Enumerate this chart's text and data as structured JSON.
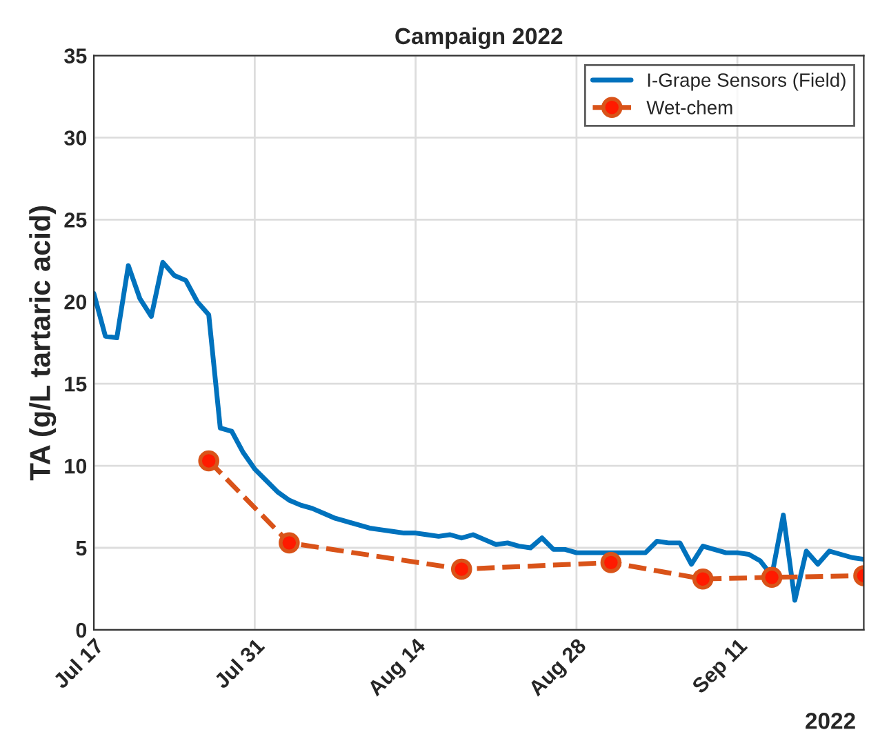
{
  "chart_data": {
    "type": "line",
    "title": "Campaign 2022",
    "ylabel": "TA (g/L tartaric acid)",
    "annotations": [
      "2022"
    ],
    "xlim": [
      "2022-07-17",
      "2022-09-22"
    ],
    "xticks": [
      {
        "value": "2022-07-17",
        "label": "Jul 17"
      },
      {
        "value": "2022-07-31",
        "label": "Jul 31"
      },
      {
        "value": "2022-08-14",
        "label": "Aug 14"
      },
      {
        "value": "2022-08-28",
        "label": "Aug 28"
      },
      {
        "value": "2022-09-11",
        "label": "Sep 11"
      }
    ],
    "ylim": [
      0,
      35
    ],
    "yticks": [
      0,
      5,
      10,
      15,
      20,
      25,
      30,
      35
    ],
    "grid": true,
    "legend": "top right",
    "series": [
      {
        "name": "I-Grape Sensors (Field)",
        "color": "#0072bd",
        "marker": "none",
        "line_style": "solid",
        "x": [
          "2022-07-17",
          "2022-07-18",
          "2022-07-19",
          "2022-07-20",
          "2022-07-21",
          "2022-07-22",
          "2022-07-23",
          "2022-07-24",
          "2022-07-25",
          "2022-07-26",
          "2022-07-27",
          "2022-07-28",
          "2022-07-29",
          "2022-07-30",
          "2022-07-31",
          "2022-08-01",
          "2022-08-02",
          "2022-08-03",
          "2022-08-04",
          "2022-08-05",
          "2022-08-06",
          "2022-08-07",
          "2022-08-08",
          "2022-08-09",
          "2022-08-10",
          "2022-08-11",
          "2022-08-12",
          "2022-08-13",
          "2022-08-14",
          "2022-08-15",
          "2022-08-16",
          "2022-08-17",
          "2022-08-18",
          "2022-08-19",
          "2022-08-20",
          "2022-08-21",
          "2022-08-22",
          "2022-08-23",
          "2022-08-24",
          "2022-08-25",
          "2022-08-26",
          "2022-08-27",
          "2022-08-28",
          "2022-08-29",
          "2022-08-30",
          "2022-08-31",
          "2022-09-01",
          "2022-09-02",
          "2022-09-03",
          "2022-09-04",
          "2022-09-05",
          "2022-09-06",
          "2022-09-07",
          "2022-09-08",
          "2022-09-09",
          "2022-09-10",
          "2022-09-11",
          "2022-09-12",
          "2022-09-13",
          "2022-09-14",
          "2022-09-15",
          "2022-09-16",
          "2022-09-17",
          "2022-09-18",
          "2022-09-19",
          "2022-09-20",
          "2022-09-21",
          "2022-09-22"
        ],
        "values": [
          20.5,
          17.9,
          17.8,
          22.2,
          20.2,
          19.1,
          22.4,
          21.6,
          21.3,
          20.0,
          19.2,
          12.3,
          12.1,
          10.8,
          9.8,
          9.1,
          8.4,
          7.9,
          7.6,
          7.4,
          7.1,
          6.8,
          6.6,
          6.4,
          6.2,
          6.1,
          6.0,
          5.9,
          5.9,
          5.8,
          5.7,
          5.8,
          5.6,
          5.8,
          5.5,
          5.2,
          5.3,
          5.1,
          5.0,
          5.6,
          4.9,
          4.9,
          4.7,
          4.7,
          4.7,
          4.7,
          4.7,
          4.7,
          4.7,
          5.4,
          5.3,
          5.3,
          4.0,
          5.1,
          4.9,
          4.7,
          4.7,
          4.6,
          4.2,
          3.3,
          7.0,
          1.8,
          4.8,
          4.0,
          4.8,
          4.6,
          4.4,
          4.3
        ]
      },
      {
        "name": "Wet-chem",
        "color": "#d95319",
        "marker": "circle",
        "line_style": "dashed",
        "x": [
          "2022-07-27",
          "2022-08-03",
          "2022-08-18",
          "2022-08-31",
          "2022-09-08",
          "2022-09-14",
          "2022-09-22"
        ],
        "values": [
          10.3,
          5.3,
          3.7,
          4.1,
          3.1,
          3.2,
          3.3
        ]
      }
    ]
  }
}
